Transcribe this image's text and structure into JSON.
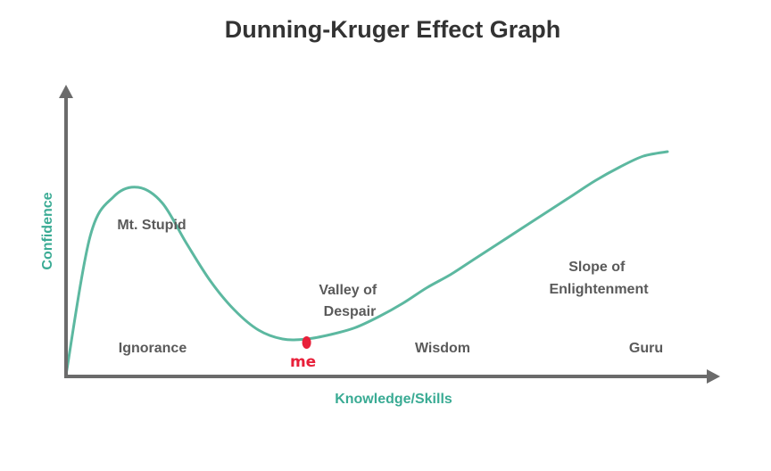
{
  "chart_data": {
    "type": "line",
    "title": "Dunning-Kruger Effect Graph",
    "xlabel": "Knowledge/Skills",
    "ylabel": "Confidence",
    "xlim": [
      0,
      100
    ],
    "ylim": [
      0,
      100
    ],
    "series": [
      {
        "x": [
          0,
          4,
          8,
          12,
          16,
          20,
          24,
          28,
          32,
          36,
          40,
          44,
          48,
          52,
          56,
          60,
          64,
          68,
          72,
          76,
          80,
          84,
          88,
          92,
          96,
          100
        ],
        "values": [
          0,
          62,
          80,
          84,
          77,
          59,
          42,
          29,
          20,
          16,
          16,
          18,
          21,
          26,
          32,
          39,
          45,
          52,
          59,
          66,
          73,
          80,
          87,
          93,
          98,
          100
        ]
      }
    ],
    "annotations": [
      {
        "text": "Mt. Stupid",
        "lines": [
          "Mt. Stupid"
        ]
      },
      {
        "text": "Valley of Despair",
        "lines": [
          "Valley of",
          "Despair"
        ]
      },
      {
        "text": "Slope of Enlightenment",
        "lines": [
          "Slope of",
          "Enlightenment"
        ]
      },
      {
        "text": "Ignorance",
        "lines": [
          "Ignorance"
        ]
      },
      {
        "text": "Wisdom",
        "lines": [
          "Wisdom"
        ]
      },
      {
        "text": "Guru",
        "lines": [
          "Guru"
        ]
      }
    ],
    "marker": {
      "text": "me",
      "x": 40,
      "y": 16
    },
    "colors": {
      "curve": "#5cb8a0",
      "axis": "#6b6b6b",
      "axis_label": "#3aab94",
      "marker": "#e8203a"
    }
  }
}
